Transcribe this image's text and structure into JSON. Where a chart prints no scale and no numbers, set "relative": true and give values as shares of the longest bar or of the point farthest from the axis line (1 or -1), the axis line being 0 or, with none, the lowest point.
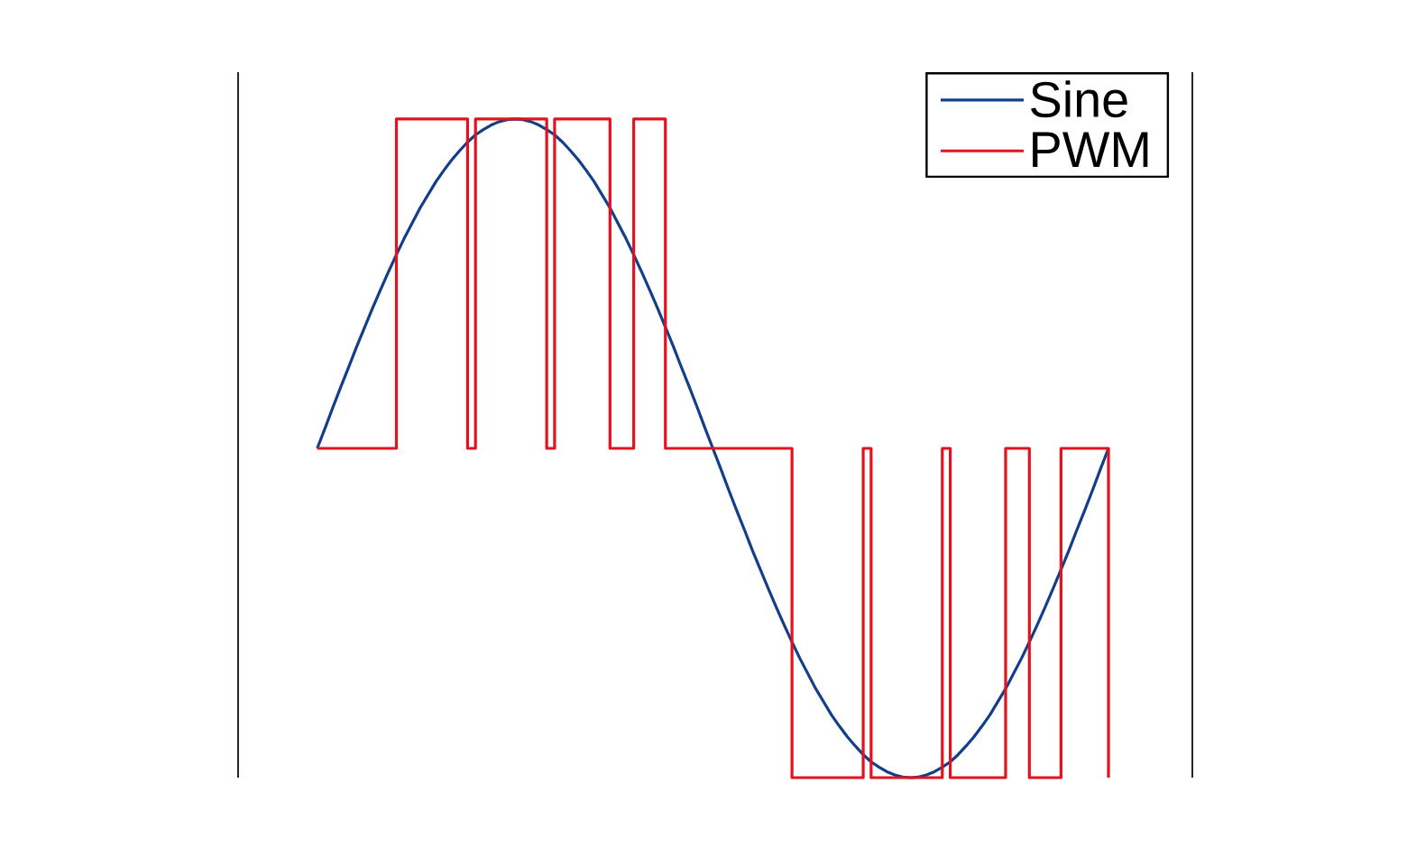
{
  "chart_data": {
    "type": "line",
    "relative": true,
    "legend": "top right",
    "categories": [
      null,
      null,
      null,
      null,
      null,
      null,
      null,
      null,
      null,
      null,
      null,
      null,
      null,
      null,
      null,
      null,
      null,
      null,
      null,
      null,
      null,
      null,
      null,
      null,
      null,
      null,
      null,
      null,
      null,
      null,
      null,
      null,
      null,
      null,
      null,
      null,
      null,
      null,
      null,
      null,
      null,
      null,
      null,
      null,
      null,
      null,
      null,
      null,
      null,
      null,
      null,
      null,
      null,
      null,
      null,
      null,
      null,
      null,
      null,
      null,
      null,
      null,
      null,
      null,
      null,
      null,
      null,
      null,
      null,
      null,
      null,
      null,
      null,
      null,
      null,
      null,
      null,
      null,
      null,
      null,
      null,
      null,
      null,
      null,
      null,
      null,
      null,
      null,
      null,
      null,
      null,
      null,
      null,
      null,
      null,
      null,
      null,
      null,
      null,
      null,
      null
    ],
    "series": [
      {
        "name": "Sine",
        "color": "#123f88",
        "values": [
          0.5,
          0.531,
          0.563,
          0.594,
          0.624,
          0.655,
          0.684,
          0.713,
          0.741,
          0.768,
          0.794,
          0.819,
          0.842,
          0.865,
          0.885,
          0.905,
          0.922,
          0.938,
          0.952,
          0.965,
          0.976,
          0.984,
          0.991,
          0.996,
          0.999,
          1,
          0.999,
          0.996,
          0.991,
          0.984,
          0.976,
          0.965,
          0.952,
          0.938,
          0.922,
          0.905,
          0.885,
          0.865,
          0.842,
          0.819,
          0.794,
          0.768,
          0.741,
          0.713,
          0.684,
          0.655,
          0.624,
          0.594,
          0.563,
          0.531,
          0.5,
          0.469,
          0.437,
          0.406,
          0.376,
          0.345,
          0.316,
          0.287,
          0.259,
          0.232,
          0.206,
          0.181,
          0.158,
          0.135,
          0.115,
          0.095,
          0.078,
          0.062,
          0.048,
          0.035,
          0.024,
          0.016,
          0.009,
          0.004,
          0.001,
          0,
          0.001,
          0.004,
          0.009,
          0.016,
          0.024,
          0.035,
          0.048,
          0.062,
          0.078,
          0.095,
          0.115,
          0.135,
          0.158,
          0.181,
          0.206,
          0.232,
          0.259,
          0.287,
          0.316,
          0.345,
          0.376,
          0.406,
          0.437,
          0.469,
          0.5
        ]
      },
      {
        "name": "PWM",
        "type": "step",
        "color": "#e3121e",
        "values": [
          0.5,
          0.5,
          0.5,
          0.5,
          0.5,
          0.5,
          0.5,
          0.5,
          0.5,
          0.5,
          1,
          1,
          1,
          1,
          1,
          1,
          1,
          1,
          1,
          0.5,
          1,
          1,
          1,
          1,
          1,
          1,
          1,
          1,
          1,
          0.5,
          1,
          1,
          1,
          1,
          1,
          1,
          1,
          0.5,
          0.5,
          0.5,
          1,
          1,
          1,
          1,
          0.5,
          0.5,
          0.5,
          0.5,
          0.5,
          0.5,
          0.5,
          0.5,
          0.5,
          0.5,
          0.5,
          0.5,
          0.5,
          0.5,
          0.5,
          0.5,
          0,
          0,
          0,
          0,
          0,
          0,
          0,
          0,
          0,
          0.5,
          0,
          0,
          0,
          0,
          0,
          0,
          0,
          0,
          0,
          0.5,
          0,
          0,
          0,
          0,
          0,
          0,
          0,
          0.5,
          0.5,
          0.5,
          0,
          0,
          0,
          0,
          0.5,
          0.5,
          0.5,
          0.5,
          0.5,
          0.5,
          0
        ]
      }
    ]
  }
}
